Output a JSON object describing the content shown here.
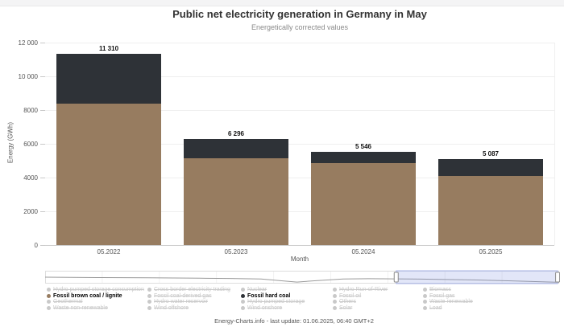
{
  "page": {
    "footer": "Energy-Charts.info - last update: 01.06.2025, 06:40 GMT+2"
  },
  "chart_data": {
    "type": "bar",
    "stacked": true,
    "title": "Public net electricity generation in Germany in May",
    "subtitle": "Energetically corrected values",
    "xlabel": "Month",
    "ylabel": "Energy (GWh)",
    "ylim": [
      0,
      12000
    ],
    "ytick_labels": [
      "12 000",
      "10 000",
      "8000",
      "6000",
      "4000",
      "2000",
      "0"
    ],
    "grid": true,
    "legend_position": "bottom",
    "categories": [
      "05.2022",
      "05.2023",
      "05.2024",
      "05.2025"
    ],
    "series": [
      {
        "name": "Fossil brown coal / lignite",
        "color": "#977c60",
        "values": [
          8400,
          5150,
          4850,
          4100
        ]
      },
      {
        "name": "Fossil hard coal",
        "color": "#2e3237",
        "values": [
          2910,
          1146,
          696,
          987
        ]
      }
    ],
    "totals": [
      11310,
      6296,
      5546,
      5087
    ],
    "total_labels": [
      "11 310",
      "6 296",
      "5 546",
      "5 087"
    ]
  },
  "navigator": {
    "selection_start_pct": 68.3,
    "selection_end_pct": 99.7,
    "sparkline_pct": [
      [
        0,
        50
      ],
      [
        10,
        53
      ],
      [
        20,
        55
      ],
      [
        30,
        58
      ],
      [
        36,
        60
      ],
      [
        42,
        64
      ],
      [
        46,
        78
      ],
      [
        49,
        88
      ],
      [
        53,
        76
      ],
      [
        58,
        64
      ],
      [
        63,
        62
      ],
      [
        68,
        63
      ],
      [
        73,
        65
      ],
      [
        78,
        68
      ],
      [
        84,
        72
      ],
      [
        90,
        78
      ],
      [
        100,
        90
      ]
    ]
  },
  "legend": {
    "columns": [
      {
        "items": [
          {
            "label": "Hydro pumped storage consumption",
            "enabled": false
          },
          {
            "label": "Fossil brown coal / lignite",
            "enabled": true,
            "color": "#977c60"
          },
          {
            "label": "Geothermal",
            "enabled": false
          },
          {
            "label": "Waste non-renewable",
            "enabled": false
          }
        ]
      },
      {
        "items": [
          {
            "label": "Cross border electricity trading",
            "enabled": false
          },
          {
            "label": "Fossil coal-derived gas",
            "enabled": false
          },
          {
            "label": "Hydro water reservoir",
            "enabled": false
          },
          {
            "label": "Wind offshore",
            "enabled": false
          }
        ]
      },
      {
        "items": [
          {
            "label": "Nuclear",
            "enabled": false
          },
          {
            "label": "Fossil hard coal",
            "enabled": true,
            "color": "#2e3237"
          },
          {
            "label": "Hydro pumped storage",
            "enabled": false
          },
          {
            "label": "Wind onshore",
            "enabled": false
          }
        ]
      },
      {
        "items": [
          {
            "label": "Hydro Run-of-River",
            "enabled": false
          },
          {
            "label": "Fossil oil",
            "enabled": false
          },
          {
            "label": "Others",
            "enabled": false
          },
          {
            "label": "Solar",
            "enabled": false
          }
        ]
      },
      {
        "items": [
          {
            "label": "Biomass",
            "enabled": false
          },
          {
            "label": "Fossil gas",
            "enabled": false
          },
          {
            "label": "Waste renewable",
            "enabled": false
          },
          {
            "label": "Load",
            "enabled": false
          }
        ]
      }
    ]
  }
}
